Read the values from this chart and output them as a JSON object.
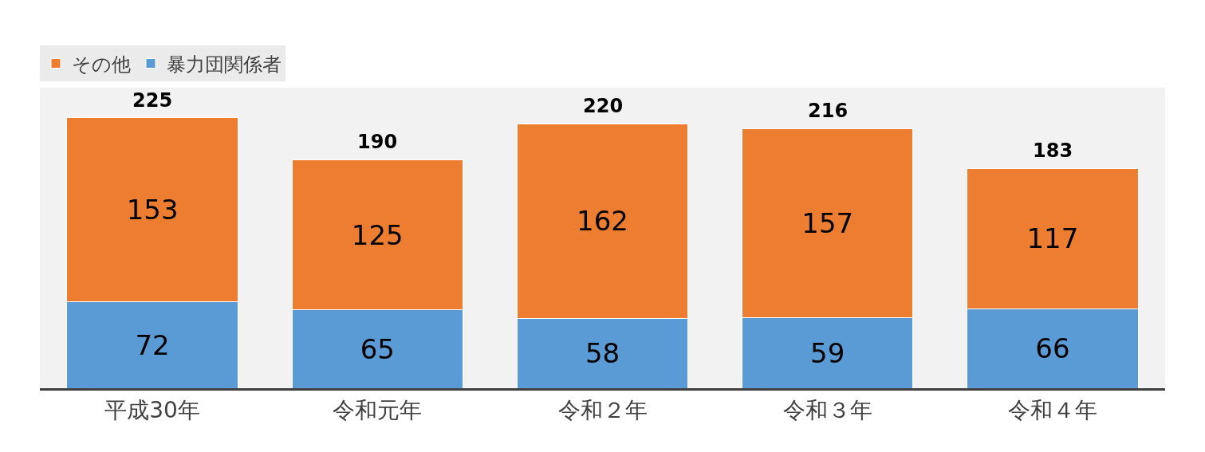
{
  "chart_data": {
    "type": "bar",
    "stacked": true,
    "categories": [
      "平成30年",
      "令和元年",
      "令和２年",
      "令和３年",
      "令和４年"
    ],
    "series": [
      {
        "name": "暴力団関係者",
        "color": "#5b9bd5",
        "values": [
          72,
          65,
          58,
          59,
          66
        ]
      },
      {
        "name": "その他",
        "color": "#ed7d31",
        "values": [
          153,
          125,
          162,
          157,
          117
        ]
      }
    ],
    "data_labels": true,
    "totals": [
      "225",
      "190",
      "220",
      "216",
      "183"
    ],
    "ylim": [
      0,
      250
    ],
    "tick_labels": "x",
    "grid": false,
    "legend": "top left"
  }
}
